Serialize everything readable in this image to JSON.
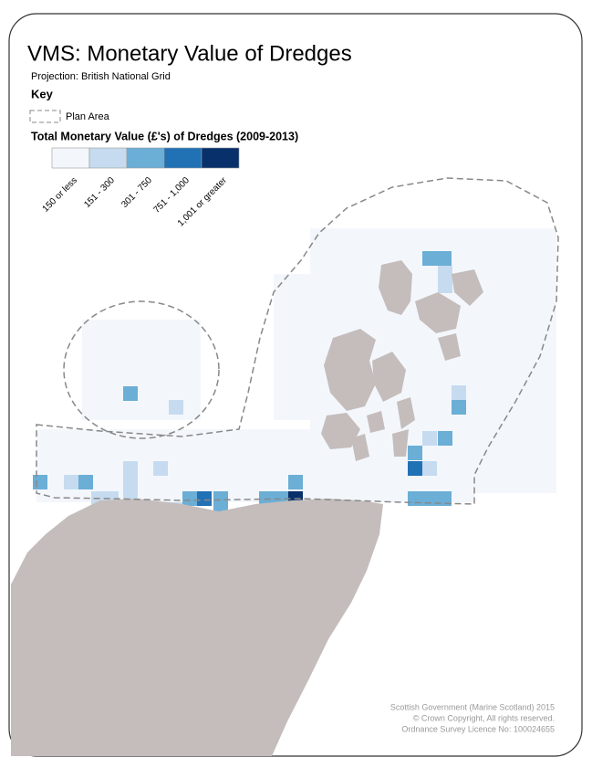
{
  "title": "VMS: Monetary Value of Dredges",
  "projection": "Projection: British National Grid",
  "key": {
    "heading": "Key",
    "plan_area": "Plan Area",
    "legend_title": "Total Monetary Value (£'s) of Dredges (2009-2013)",
    "classes": [
      {
        "label": "150 or less",
        "color": "#f3f7fc"
      },
      {
        "label": "151 - 300",
        "color": "#c6dbef"
      },
      {
        "label": "301 - 750",
        "color": "#6baed6"
      },
      {
        "label": "751 - 1,000",
        "color": "#2171b5"
      },
      {
        "label": "1,001 or greater",
        "color": "#08306b"
      }
    ]
  },
  "footer": [
    "Scottish Government (Marine Scotland) 2015",
    "© Crown Copyright, All rights reserved.",
    "Ordnance Survey Licence No: 100024655"
  ]
}
